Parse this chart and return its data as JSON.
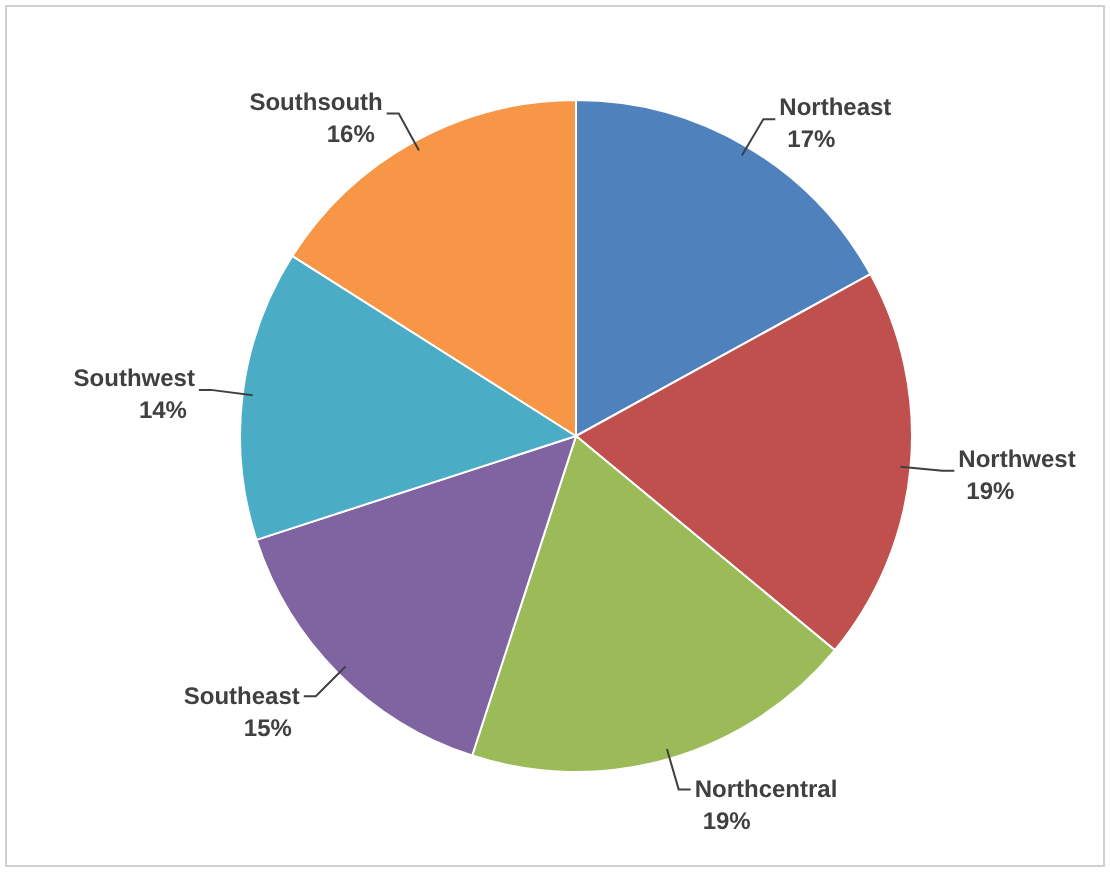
{
  "chart_data": {
    "type": "pie",
    "categories": [
      "Northeast",
      "Northwest",
      "Northcentral",
      "Southeast",
      "Southwest",
      "Southsouth"
    ],
    "values": [
      17,
      19,
      19,
      15,
      14,
      16
    ],
    "value_labels": [
      "17%",
      "19%",
      "19%",
      "15%",
      "14%",
      "16%"
    ],
    "colors": [
      "#4f81bd",
      "#c0504d",
      "#9bbb59",
      "#8064a2",
      "#4bacc6",
      "#f79646"
    ]
  }
}
